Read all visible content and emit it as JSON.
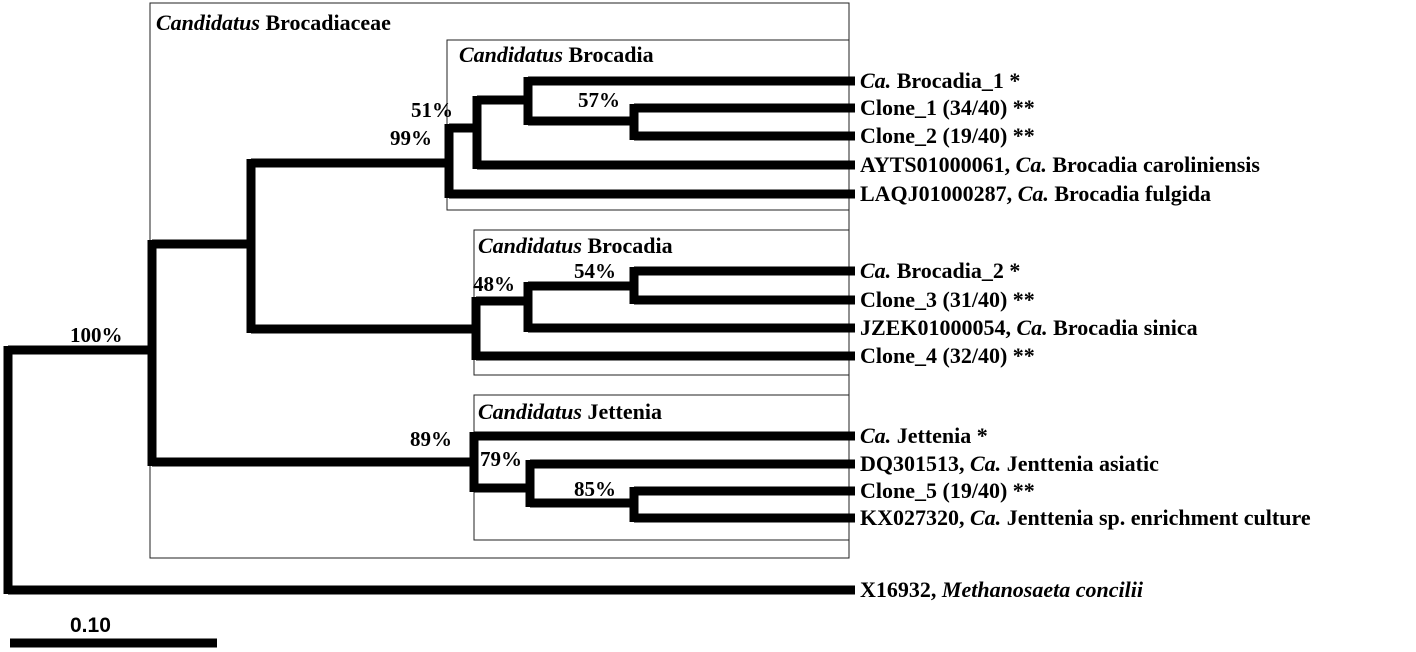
{
  "clades": {
    "brocadiaceae": {
      "italic": "Candidatus",
      "rest": " Brocadiaceae"
    },
    "brocadia_1": {
      "italic": "Candidatus",
      "rest": " Brocadia"
    },
    "brocadia_2": {
      "italic": "Candidatus",
      "rest": " Brocadia"
    },
    "jettenia": {
      "italic": "Candidatus",
      "rest": " Jettenia"
    }
  },
  "bootstrap": {
    "root": "100%",
    "brocadia_group": "99%",
    "brocadia_inner": "51%",
    "clone_1_2": "57%",
    "brocadia2_group": "48%",
    "brocadia2_clone3": "54%",
    "jettenia_group": "89%",
    "jettenia_inner": "79%",
    "clone5_kx": "85%"
  },
  "leaves": [
    {
      "pre": "",
      "it": "Ca.",
      "post": " Brocadia_1 *"
    },
    {
      "pre": "Clone_1 (34/40) **",
      "it": "",
      "post": ""
    },
    {
      "pre": "Clone_2 (19/40) **",
      "it": "",
      "post": ""
    },
    {
      "pre": "AYTS01000061, ",
      "it": "Ca.",
      "post": "  Brocadia caroliniensis"
    },
    {
      "pre": "LAQJ01000287, ",
      "it": "Ca.",
      "post": "  Brocadia fulgida"
    },
    {
      "pre": "",
      "it": "Ca.",
      "post": " Brocadia_2 *"
    },
    {
      "pre": "Clone_3 (31/40) **",
      "it": "",
      "post": ""
    },
    {
      "pre": "JZEK01000054, ",
      "it": "Ca.",
      "post": " Brocadia sinica"
    },
    {
      "pre": "Clone_4 (32/40) **",
      "it": "",
      "post": ""
    },
    {
      "pre": "",
      "it": "Ca.",
      "post": " Jettenia *"
    },
    {
      "pre": "DQ301513, ",
      "it": "Ca.",
      "post": " Jenttenia asiatic"
    },
    {
      "pre": "Clone_5 (19/40) **",
      "it": "",
      "post": ""
    },
    {
      "pre": "KX027320, ",
      "it": "Ca.",
      "post": " Jenttenia sp. enrichment culture"
    },
    {
      "pre": "X16932, ",
      "it": "Methanosaeta concilii",
      "post": ""
    }
  ],
  "scale_bar": {
    "label": "0.10",
    "value": 0.1
  }
}
